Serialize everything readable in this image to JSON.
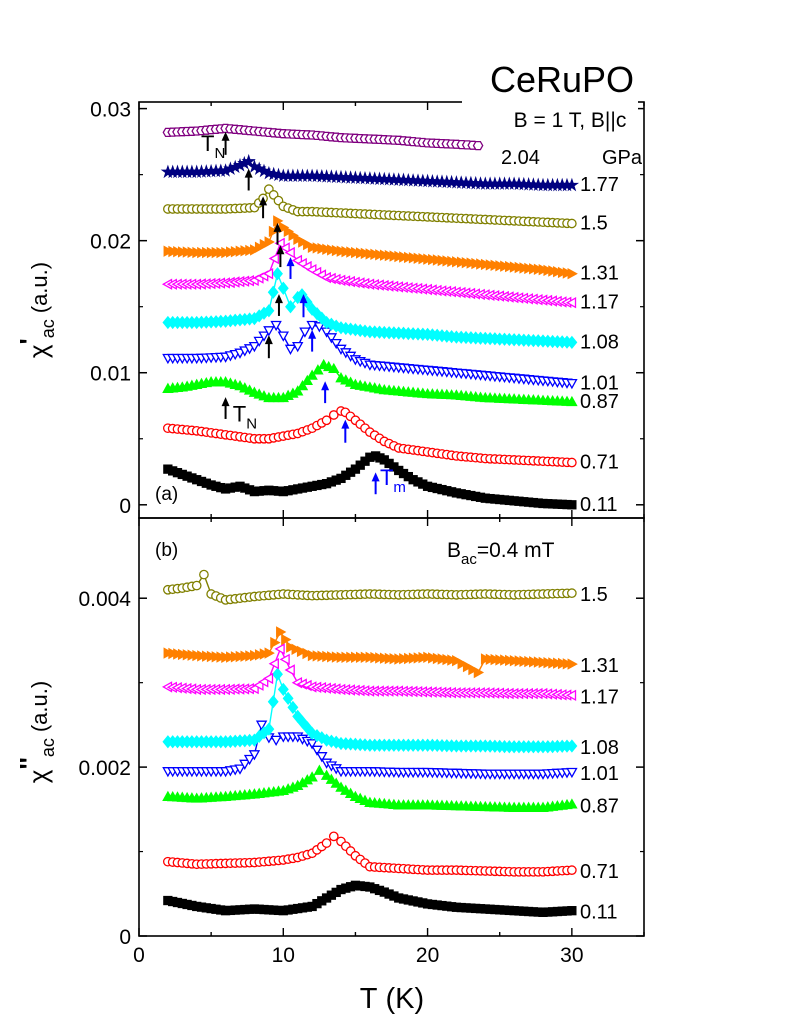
{
  "figure": {
    "title": "CeRuPO",
    "xlabel_main": "T",
    "xlabel_unit": "(K)",
    "x_ticks": [
      "0",
      "10",
      "20",
      "30"
    ]
  },
  "chart_data": [
    {
      "type": "line",
      "panel_label": "(a)",
      "ylabel": {
        "main": "χ",
        "prime": "'",
        "sub": "ac",
        "unit": "(a.u.)"
      },
      "condition": "B = 1 T, B||c",
      "legend_unit": "GPa",
      "xlim": [
        0,
        35
      ],
      "ylim": [
        -0.001,
        0.0305
      ],
      "y_ticks": [
        {
          "value": 0,
          "label": "0"
        },
        {
          "value": 0.01,
          "label": "0.01"
        },
        {
          "value": 0.02,
          "label": "0.02"
        },
        {
          "value": 0.03,
          "label": "0.03"
        }
      ],
      "series": [
        {
          "name": "0.11",
          "color": "#000000",
          "marker": "square-filled",
          "x": [
            2,
            3,
            4,
            5,
            6,
            7,
            8,
            9,
            10,
            11,
            12,
            13,
            14,
            15,
            16,
            16.4,
            17,
            18,
            19,
            20,
            22,
            24,
            26,
            28,
            30
          ],
          "y": [
            0.0027,
            0.0023,
            0.0019,
            0.0015,
            0.0012,
            0.0014,
            0.001,
            0.0011,
            0.001,
            0.0012,
            0.0014,
            0.0016,
            0.002,
            0.0027,
            0.0036,
            0.0037,
            0.0034,
            0.0026,
            0.0019,
            0.0014,
            0.0009,
            0.0005,
            0.0003,
            0.0001,
            0.0
          ]
        },
        {
          "name": "0.71",
          "color": "#ff0000",
          "marker": "circle-open",
          "x": [
            2,
            4,
            6,
            8,
            9,
            10,
            11,
            12,
            13,
            13.5,
            14,
            14.3,
            15,
            16,
            17,
            18,
            20,
            22,
            24,
            26,
            28,
            30
          ],
          "y": [
            0.0058,
            0.0056,
            0.0053,
            0.005,
            0.005,
            0.0052,
            0.0054,
            0.0058,
            0.0064,
            0.0068,
            0.0071,
            0.007,
            0.0064,
            0.0055,
            0.0048,
            0.0043,
            0.004,
            0.0037,
            0.0035,
            0.0034,
            0.0033,
            0.0032
          ]
        },
        {
          "name": "0.87",
          "color": "#00ff00",
          "marker": "triangle-up-filled",
          "x": [
            2,
            3,
            4,
            5,
            6,
            7,
            8,
            9,
            10,
            11,
            12,
            12.8,
            13.5,
            14,
            15,
            16,
            17,
            18,
            20,
            22,
            24,
            26,
            28,
            30
          ],
          "y": [
            0.0088,
            0.0089,
            0.0091,
            0.0093,
            0.0093,
            0.009,
            0.0085,
            0.0081,
            0.0081,
            0.0086,
            0.0098,
            0.0106,
            0.0103,
            0.0096,
            0.0091,
            0.0089,
            0.0087,
            0.0086,
            0.0084,
            0.0083,
            0.0081,
            0.008,
            0.0079,
            0.0078
          ]
        },
        {
          "name": "1.01",
          "color": "#0000ff",
          "marker": "triangle-down-open",
          "x": [
            2,
            4,
            6,
            7,
            8,
            9,
            9.5,
            10,
            10.5,
            11,
            11.5,
            12,
            12.5,
            13,
            14,
            15,
            16,
            18,
            20,
            22,
            24,
            26,
            28,
            30
          ],
          "y": [
            0.0111,
            0.0111,
            0.0112,
            0.0115,
            0.012,
            0.0132,
            0.0136,
            0.0128,
            0.0118,
            0.012,
            0.0131,
            0.0136,
            0.0135,
            0.0131,
            0.0118,
            0.011,
            0.0106,
            0.0104,
            0.0102,
            0.01,
            0.0098,
            0.0096,
            0.0094,
            0.0092
          ]
        },
        {
          "name": "1.08",
          "color": "#00ffff",
          "marker": "diamond-filled",
          "x": [
            2,
            4,
            6,
            8,
            9,
            9.6,
            10,
            10.5,
            11,
            11.3,
            12,
            13,
            14,
            16,
            18,
            20,
            22,
            24,
            26,
            28,
            30
          ],
          "y": [
            0.0138,
            0.0138,
            0.0139,
            0.0141,
            0.0147,
            0.0175,
            0.0164,
            0.015,
            0.0157,
            0.0159,
            0.0148,
            0.0138,
            0.0134,
            0.0131,
            0.013,
            0.0129,
            0.0127,
            0.0126,
            0.0125,
            0.0124,
            0.0123
          ]
        },
        {
          "name": "1.17",
          "color": "#ff00ff",
          "marker": "triangle-left-open",
          "x": [
            2,
            4,
            6,
            8,
            9,
            9.8,
            10.5,
            11,
            12,
            13,
            14,
            16,
            18,
            20,
            22,
            24,
            26,
            28,
            30
          ],
          "y": [
            0.0167,
            0.0167,
            0.0168,
            0.017,
            0.0175,
            0.0198,
            0.0191,
            0.0185,
            0.0178,
            0.0172,
            0.017,
            0.0167,
            0.0165,
            0.0163,
            0.0161,
            0.0159,
            0.0157,
            0.0155,
            0.0153
          ]
        },
        {
          "name": "1.31",
          "color": "#ff8000",
          "marker": "triangle-right-filled",
          "x": [
            2,
            4,
            6,
            8,
            9,
            9.6,
            10,
            11,
            12,
            14,
            16,
            18,
            20,
            22,
            24,
            26,
            28,
            30
          ],
          "y": [
            0.0192,
            0.0191,
            0.0191,
            0.0193,
            0.0199,
            0.0215,
            0.021,
            0.0201,
            0.0195,
            0.0192,
            0.019,
            0.0188,
            0.0186,
            0.0184,
            0.0182,
            0.018,
            0.0178,
            0.0175
          ]
        },
        {
          "name": "1.5",
          "color": "#808000",
          "marker": "circle-open",
          "x": [
            2,
            4,
            6,
            8,
            8.6,
            9,
            10,
            11,
            12,
            14,
            16,
            18,
            20,
            22,
            24,
            26,
            28,
            30
          ],
          "y": [
            0.0224,
            0.0224,
            0.0224,
            0.0225,
            0.0232,
            0.0239,
            0.0226,
            0.0222,
            0.0222,
            0.0221,
            0.022,
            0.0219,
            0.0218,
            0.0217,
            0.0216,
            0.0215,
            0.0214,
            0.0213
          ]
        },
        {
          "name": "1.77",
          "color": "#000080",
          "marker": "star-filled",
          "x": [
            2,
            4,
            6,
            7,
            7.6,
            8,
            9,
            10,
            12,
            14,
            16,
            18,
            20,
            22,
            24,
            26,
            28,
            30
          ],
          "y": [
            0.0252,
            0.0252,
            0.0253,
            0.0257,
            0.026,
            0.0256,
            0.0251,
            0.0249,
            0.0249,
            0.0248,
            0.0247,
            0.0246,
            0.0245,
            0.0244,
            0.0243,
            0.0243,
            0.0242,
            0.0242
          ]
        },
        {
          "name": "2.04",
          "color": "#800080",
          "marker": "hexagon-open",
          "x": [
            2,
            4,
            5,
            6,
            7,
            8,
            10,
            12,
            14,
            16,
            18,
            20,
            22,
            23.5
          ],
          "y": [
            0.0282,
            0.0283,
            0.0284,
            0.0285,
            0.0284,
            0.0283,
            0.0281,
            0.028,
            0.0278,
            0.0277,
            0.0276,
            0.0274,
            0.0273,
            0.0272
          ]
        }
      ],
      "annotations": [
        {
          "text": "T",
          "sub": "N",
          "color": "#000000",
          "x": 4.3,
          "y": 0.0268
        },
        {
          "text": "T",
          "sub": "N",
          "color": "#000000",
          "x": 6.5,
          "y": 0.0063
        },
        {
          "text": "T",
          "sub": "m",
          "color": "#0000ff",
          "x": 16.7,
          "y": 0.0015
        }
      ],
      "arrows": [
        {
          "color": "#000000",
          "x": 6.0,
          "y_from": 0.0265,
          "y_to": 0.0281
        },
        {
          "color": "#000000",
          "x": 7.6,
          "y_from": 0.0238,
          "y_to": 0.0253
        },
        {
          "color": "#000000",
          "x": 8.6,
          "y_from": 0.0217,
          "y_to": 0.0232
        },
        {
          "color": "#000000",
          "x": 9.6,
          "y_from": 0.0197,
          "y_to": 0.0212
        },
        {
          "color": "#000000",
          "x": 9.8,
          "y_from": 0.018,
          "y_to": 0.0195
        },
        {
          "color": "#000000",
          "x": 9.7,
          "y_from": 0.0143,
          "y_to": 0.0158
        },
        {
          "color": "#000000",
          "x": 9.0,
          "y_from": 0.0111,
          "y_to": 0.0127
        },
        {
          "color": "#000000",
          "x": 6.0,
          "y_from": 0.0065,
          "y_to": 0.008
        },
        {
          "color": "#0000ff",
          "x": 10.5,
          "y_from": 0.0171,
          "y_to": 0.0186
        },
        {
          "color": "#0000ff",
          "x": 11.4,
          "y_from": 0.0142,
          "y_to": 0.0158
        },
        {
          "color": "#0000ff",
          "x": 12.0,
          "y_from": 0.0116,
          "y_to": 0.0131
        },
        {
          "color": "#0000ff",
          "x": 12.9,
          "y_from": 0.0077,
          "y_to": 0.0092
        },
        {
          "color": "#0000ff",
          "x": 14.3,
          "y_from": 0.0047,
          "y_to": 0.0063
        },
        {
          "color": "#0000ff",
          "x": 16.4,
          "y_from": 0.0008,
          "y_to": 0.0023
        }
      ]
    },
    {
      "type": "line",
      "panel_label": "(b)",
      "ylabel": {
        "main": "χ",
        "prime": "''",
        "sub": "ac",
        "unit": "(a.u.)"
      },
      "condition_main": "B",
      "condition_sub": "ac",
      "condition_rest": "=0.4 mT",
      "xlim": [
        0,
        35
      ],
      "ylim": [
        0,
        0.00495
      ],
      "y_ticks": [
        {
          "value": 0,
          "label": "0"
        },
        {
          "value": 0.002,
          "label": "0.002"
        },
        {
          "value": 0.004,
          "label": "0.004"
        }
      ],
      "series": [
        {
          "name": "0.11",
          "color": "#000000",
          "marker": "square-filled",
          "x": [
            2,
            4,
            6,
            8,
            10,
            12,
            13,
            14,
            15,
            16,
            17,
            18,
            20,
            22,
            24,
            26,
            28,
            30
          ],
          "y": [
            0.00042,
            0.00035,
            0.0003,
            0.00032,
            0.0003,
            0.00035,
            0.00045,
            0.00055,
            0.0006,
            0.00058,
            0.00052,
            0.00045,
            0.00038,
            0.00034,
            0.00032,
            0.0003,
            0.00028,
            0.0003
          ]
        },
        {
          "name": "0.71",
          "color": "#ff0000",
          "marker": "circle-open",
          "x": [
            2,
            4,
            6,
            8,
            10,
            11,
            12,
            13,
            13.5,
            14,
            15,
            16,
            18,
            20,
            22,
            24,
            26,
            28,
            30
          ],
          "y": [
            0.00088,
            0.00085,
            0.00086,
            0.00087,
            0.0009,
            0.00093,
            0.00098,
            0.0011,
            0.00118,
            0.00112,
            0.00095,
            0.00082,
            0.0008,
            0.00078,
            0.00078,
            0.00077,
            0.00076,
            0.00076,
            0.00078
          ]
        },
        {
          "name": "0.87",
          "color": "#00ff00",
          "marker": "triangle-up-filled",
          "x": [
            2,
            4,
            6,
            8,
            10,
            11,
            12,
            12.5,
            13,
            14,
            15,
            16,
            18,
            20,
            22,
            24,
            26,
            28,
            30
          ],
          "y": [
            0.00165,
            0.00163,
            0.00165,
            0.00168,
            0.00172,
            0.00178,
            0.00188,
            0.00196,
            0.0019,
            0.00176,
            0.00165,
            0.00158,
            0.00155,
            0.00155,
            0.00154,
            0.00153,
            0.00152,
            0.00152,
            0.00156
          ]
        },
        {
          "name": "1.01",
          "color": "#0000ff",
          "marker": "triangle-down-open",
          "x": [
            2,
            4,
            6,
            7,
            8,
            8.5,
            9,
            9.5,
            10,
            11,
            12,
            13,
            14,
            16,
            18,
            20,
            22,
            24,
            26,
            28,
            30
          ],
          "y": [
            0.00195,
            0.00195,
            0.00195,
            0.00198,
            0.00215,
            0.0025,
            0.00235,
            0.00232,
            0.00236,
            0.00236,
            0.00228,
            0.00205,
            0.00195,
            0.00195,
            0.00194,
            0.00194,
            0.00193,
            0.00192,
            0.00192,
            0.00192,
            0.00194
          ]
        },
        {
          "name": "1.08",
          "color": "#00ffff",
          "marker": "diamond-filled",
          "x": [
            2,
            4,
            6,
            8,
            9,
            9.6,
            10,
            11,
            12,
            13,
            14,
            16,
            18,
            20,
            22,
            24,
            26,
            28,
            30
          ],
          "y": [
            0.0023,
            0.0023,
            0.0023,
            0.00232,
            0.00245,
            0.0031,
            0.00292,
            0.0026,
            0.0024,
            0.00232,
            0.00228,
            0.00226,
            0.00226,
            0.00226,
            0.00225,
            0.00225,
            0.00224,
            0.00224,
            0.00225
          ]
        },
        {
          "name": "1.17",
          "color": "#ff00ff",
          "marker": "triangle-left-open",
          "x": [
            2,
            4,
            6,
            8,
            9,
            9.8,
            10.5,
            11,
            12,
            14,
            16,
            18,
            20,
            22,
            24,
            26,
            28,
            30
          ],
          "y": [
            0.00295,
            0.00292,
            0.00292,
            0.00293,
            0.00305,
            0.0034,
            0.00315,
            0.003,
            0.00295,
            0.00292,
            0.0029,
            0.0029,
            0.00289,
            0.00288,
            0.00288,
            0.00287,
            0.00287,
            0.00285
          ]
        },
        {
          "name": "1.31",
          "color": "#ff8000",
          "marker": "triangle-right-filled",
          "x": [
            2,
            4,
            6,
            8,
            9,
            9.8,
            10.5,
            12,
            14,
            16,
            18,
            20,
            22,
            23.5,
            24,
            26,
            28,
            30
          ],
          "y": [
            0.00335,
            0.00332,
            0.0033,
            0.00332,
            0.00335,
            0.0036,
            0.00342,
            0.00332,
            0.0033,
            0.0033,
            0.00328,
            0.0033,
            0.00326,
            0.00312,
            0.00328,
            0.00326,
            0.00324,
            0.00322
          ]
        },
        {
          "name": "1.5",
          "color": "#808000",
          "marker": "circle-open",
          "x": [
            2,
            3,
            4,
            4.5,
            5,
            6,
            8,
            10,
            12,
            14,
            16,
            18,
            20,
            22,
            24,
            26,
            28,
            30
          ],
          "y": [
            0.0041,
            0.00412,
            0.00415,
            0.00428,
            0.00405,
            0.00398,
            0.00402,
            0.00405,
            0.00403,
            0.00404,
            0.00405,
            0.00404,
            0.00405,
            0.00404,
            0.00405,
            0.00404,
            0.00405,
            0.00406
          ]
        }
      ]
    }
  ]
}
